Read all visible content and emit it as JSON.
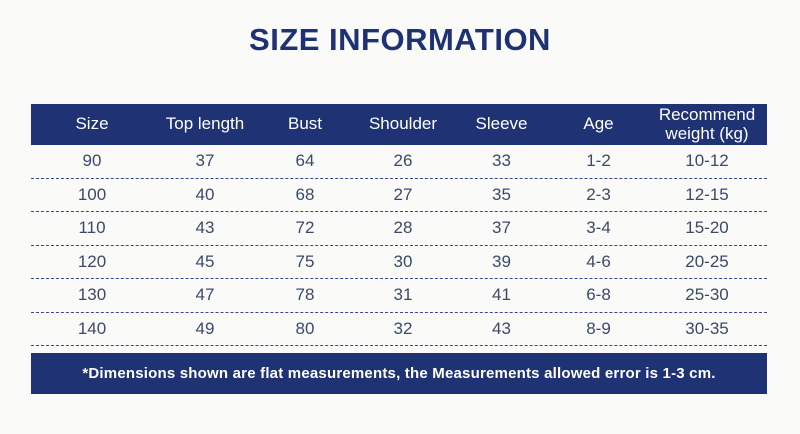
{
  "title": "SIZE INFORMATION",
  "colors": {
    "navy": "#1f3274",
    "title_text": "#1e3173",
    "body_text": "#3c4968",
    "dashed_line": "#3a478f",
    "background": "#fafaf8",
    "header_text": "#ffffff"
  },
  "table": {
    "headers": [
      "Size",
      "Top length",
      "Bust",
      "Shoulder",
      "Sleeve",
      "Age",
      "Recommend weight (kg)"
    ],
    "rows": [
      [
        "90",
        "37",
        "64",
        "26",
        "33",
        "1-2",
        "10-12"
      ],
      [
        "100",
        "40",
        "68",
        "27",
        "35",
        "2-3",
        "12-15"
      ],
      [
        "110",
        "43",
        "72",
        "28",
        "37",
        "3-4",
        "15-20"
      ],
      [
        "120",
        "45",
        "75",
        "30",
        "39",
        "4-6",
        "20-25"
      ],
      [
        "130",
        "47",
        "78",
        "31",
        "41",
        "6-8",
        "25-30"
      ],
      [
        "140",
        "49",
        "80",
        "32",
        "43",
        "8-9",
        "30-35"
      ]
    ]
  },
  "footer": {
    "note": "*Dimensions shown are flat measurements,  the Measurements allowed error is 1-3 cm."
  }
}
